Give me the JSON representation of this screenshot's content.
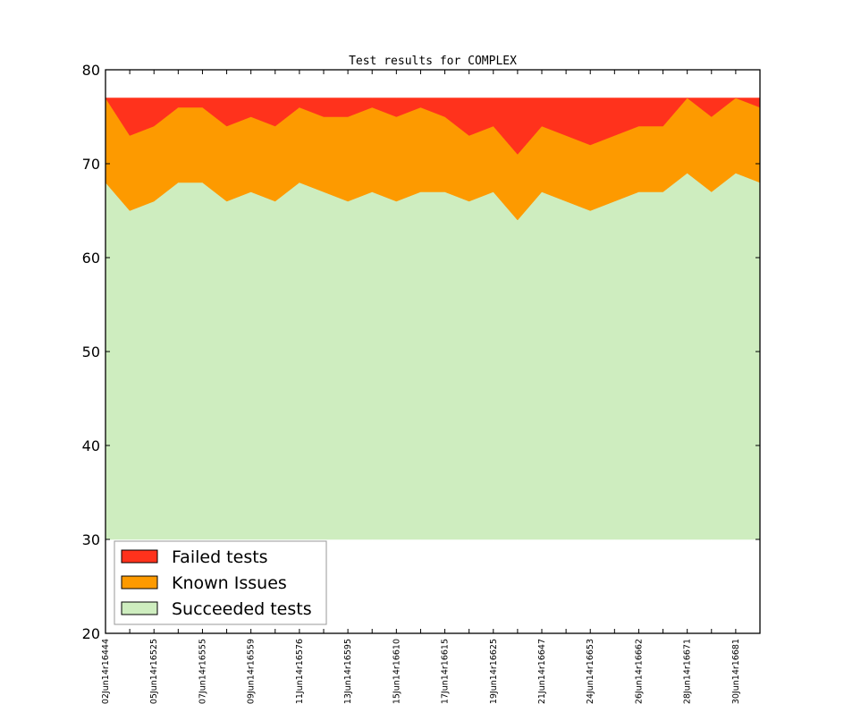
{
  "chart_data": {
    "type": "area",
    "stacked": true,
    "title": "Test results for COMPLEX",
    "xlabel": "",
    "ylabel": "",
    "ylim": [
      20,
      80
    ],
    "yticks": [
      20,
      30,
      40,
      50,
      60,
      70,
      80
    ],
    "baseline": 30,
    "grid": false,
    "legend_position": "bottom-left",
    "x": [
      0,
      1,
      2,
      3,
      4,
      5,
      6,
      7,
      8,
      9,
      10,
      11,
      12,
      13,
      14,
      15,
      16,
      17,
      18,
      19,
      20,
      21,
      22,
      23,
      24,
      25,
      26,
      27
    ],
    "xtick_labels": [
      "02Jun14r16444",
      "05Jun14r16525",
      "07Jun14r16555",
      "09Jun14r16559",
      "11Jun14r16576",
      "13Jun14r16595",
      "15Jun14r16610",
      "17Jun14r16615",
      "19Jun14r16625",
      "21Jun14r16647",
      "24Jun14r16653",
      "26Jun14r16662",
      "28Jun14r16671",
      "30Jun14r16681"
    ],
    "xtick_label_every": 2,
    "series": [
      {
        "name": "Succeeded tests",
        "color": "#ceedbf",
        "cumulative_top": [
          68,
          65,
          66,
          68,
          68,
          66,
          67,
          66,
          68,
          67,
          66,
          67,
          66,
          67,
          67,
          66,
          67,
          64,
          67,
          66,
          65,
          66,
          67,
          67,
          69,
          67,
          69,
          68
        ]
      },
      {
        "name": "Known Issues",
        "color": "#fd9a00",
        "cumulative_top": [
          77,
          73,
          74,
          76,
          76,
          74,
          75,
          74,
          76,
          75,
          75,
          76,
          75,
          76,
          75,
          73,
          74,
          71,
          74,
          73,
          72,
          73,
          74,
          74,
          77,
          75,
          77,
          76
        ]
      },
      {
        "name": "Failed tests",
        "color": "#ff321c",
        "cumulative_top": [
          77,
          77,
          77,
          77,
          77,
          77,
          77,
          77,
          77,
          77,
          77,
          77,
          77,
          77,
          77,
          77,
          77,
          77,
          77,
          77,
          77,
          77,
          77,
          77,
          77,
          77,
          77,
          77
        ]
      }
    ],
    "legend": [
      "Failed tests",
      "Known Issues",
      "Succeeded tests"
    ]
  }
}
